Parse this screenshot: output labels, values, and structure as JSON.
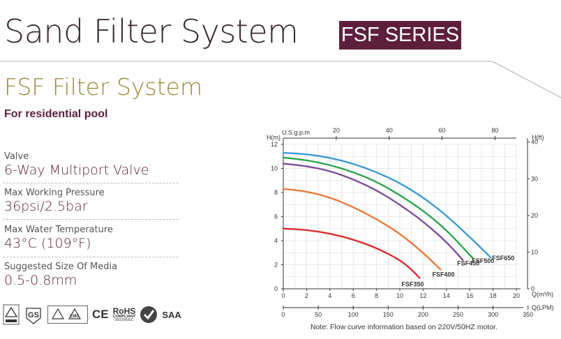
{
  "header": {
    "title": "Sand Filter System",
    "series_badge": "FSF SERIES"
  },
  "product": {
    "title": "FSF Filter System",
    "caption": "For residential pool"
  },
  "specs": [
    {
      "label": "Valve",
      "value": "6-Way Multiport Valve"
    },
    {
      "label": "Max Working Pressure",
      "value": "36psi/2.5bar"
    },
    {
      "label": "Max Water Temperature",
      "value": "43°C (109°F)"
    },
    {
      "label": "Suggested Size Of Media",
      "value": "0.5-0.8mm"
    }
  ],
  "certifications": {
    "rohs_title": "RoHS",
    "rohs_sub": "COMPLIANT",
    "rohs_code": "2002/95/EC",
    "ce": "CE",
    "saa": "SAA",
    "gs": "GS",
    "emc": "EMC"
  },
  "colors": {
    "brand_dark": "#5e1f3c",
    "accent_gold": "#9a8a3c",
    "FSF350": "#d62f2f",
    "FSF400": "#e87a3c",
    "FSF450": "#7e4c9a",
    "FSF500": "#2ea34f",
    "FSF650": "#3d9bd1"
  },
  "chart_data": {
    "type": "line",
    "xlabel": "Q(m³/h)",
    "xlabel_secondary": "Q(LPM)",
    "xlabel_top": "U.S.g.p.m",
    "ylabel": "H(m)",
    "ylabel_right": "H(ft)",
    "xlim": [
      0,
      20
    ],
    "ylim": [
      0,
      12
    ],
    "x_ticks": [
      "0",
      "2",
      "4",
      "6",
      "8",
      "10",
      "12",
      "14",
      "16",
      "18",
      "20"
    ],
    "lpm_ticks": [
      "0",
      "50",
      "100",
      "150",
      "200",
      "250",
      "300",
      "350"
    ],
    "gpm_ticks": [
      "20",
      "40",
      "60",
      "80"
    ],
    "y_ticks": [
      "0",
      "2",
      "4",
      "6",
      "8",
      "10",
      "12"
    ],
    "ft_ticks": [
      "0",
      "10",
      "20",
      "30",
      "40"
    ],
    "series": [
      {
        "name": "FSF350",
        "x": [
          0,
          2,
          4,
          6,
          8,
          10,
          11,
          11.7
        ],
        "y": [
          5.0,
          4.9,
          4.6,
          4.1,
          3.4,
          2.4,
          1.6,
          0.9
        ]
      },
      {
        "name": "FSF400",
        "x": [
          0,
          2,
          4,
          6,
          8,
          10,
          12,
          13.5
        ],
        "y": [
          8.3,
          8.1,
          7.6,
          6.8,
          5.8,
          4.6,
          3.0,
          1.6
        ]
      },
      {
        "name": "FSF450",
        "x": [
          0,
          2,
          4,
          6,
          8,
          10,
          12,
          14,
          15.4
        ],
        "y": [
          10.4,
          10.2,
          9.8,
          9.1,
          8.2,
          7.0,
          5.6,
          3.9,
          2.4
        ]
      },
      {
        "name": "FSF500",
        "x": [
          0,
          2,
          4,
          6,
          8,
          10,
          12,
          14,
          16.3
        ],
        "y": [
          10.9,
          10.7,
          10.3,
          9.7,
          8.9,
          7.8,
          6.5,
          4.9,
          2.5
        ]
      },
      {
        "name": "FSF650",
        "x": [
          0,
          2,
          4,
          6,
          8,
          10,
          12,
          14,
          16,
          17.8
        ],
        "y": [
          11.3,
          11.2,
          10.9,
          10.4,
          9.7,
          8.8,
          7.6,
          6.1,
          4.3,
          2.6
        ]
      }
    ]
  },
  "note": "Note:  Flow curve information based on 220V/50HZ motor."
}
